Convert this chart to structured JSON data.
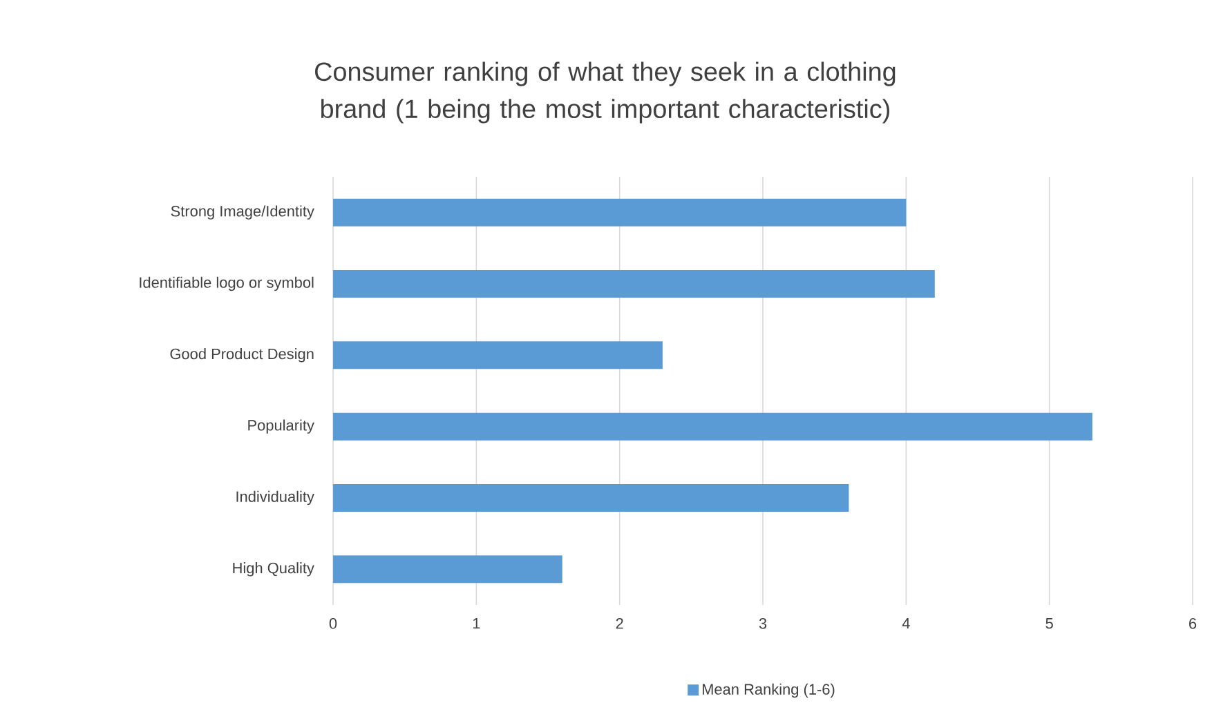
{
  "chart_data": {
    "type": "bar",
    "orientation": "horizontal",
    "title": "Consumer ranking of what they seek in a clothing brand (1 being the most important characteristic)",
    "categories": [
      "Strong Image/Identity",
      "Identifiable logo or symbol",
      "Good Product Design",
      "Popularity",
      "Individuality",
      "High Quality"
    ],
    "series": [
      {
        "name": "Mean Ranking (1-6)",
        "color": "#5b9bd5",
        "values": [
          4.0,
          4.2,
          2.3,
          5.3,
          3.6,
          1.6
        ]
      }
    ],
    "xlim": [
      0,
      6
    ],
    "xticks": [
      0,
      1,
      2,
      3,
      4,
      5,
      6
    ],
    "grid": "x",
    "legend": "bottom"
  }
}
